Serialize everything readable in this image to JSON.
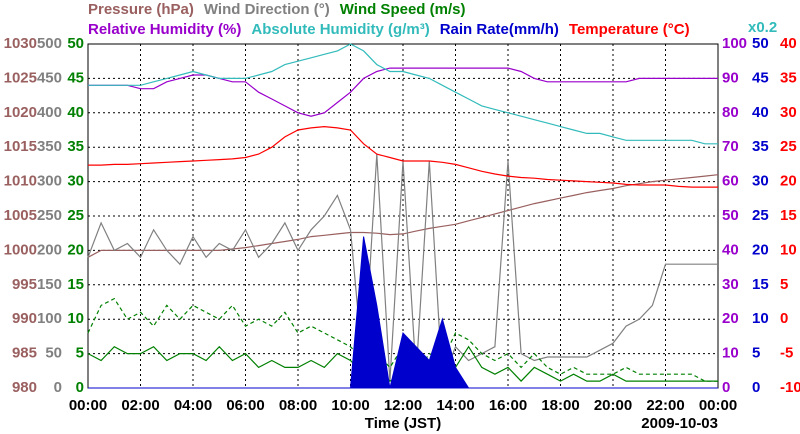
{
  "chart_data": {
    "type": "line",
    "x_label": "Time (JST)",
    "date": "2009-10-03",
    "xlim": [
      0,
      24
    ],
    "xticks": [
      {
        "value": 0,
        "label": "00:00"
      },
      {
        "value": 2,
        "label": "02:00"
      },
      {
        "value": 4,
        "label": "04:00"
      },
      {
        "value": 6,
        "label": "06:00"
      },
      {
        "value": 8,
        "label": "08:00"
      },
      {
        "value": 10,
        "label": "10:00"
      },
      {
        "value": 12,
        "label": "12:00"
      },
      {
        "value": 14,
        "label": "14:00"
      },
      {
        "value": 16,
        "label": "16:00"
      },
      {
        "value": 18,
        "label": "18:00"
      },
      {
        "value": 20,
        "label": "20:00"
      },
      {
        "value": 22,
        "label": "22:00"
      },
      {
        "value": 24,
        "label": "00:00"
      }
    ],
    "grid": true,
    "axes": [
      {
        "side": "left",
        "color": "#9a6060",
        "lim": [
          980,
          1030
        ],
        "ticks": [
          980,
          985,
          990,
          995,
          1000,
          1005,
          1010,
          1015,
          1020,
          1025,
          1030
        ]
      },
      {
        "side": "left",
        "color": "#808080",
        "lim": [
          0,
          500
        ],
        "ticks": [
          0,
          50,
          100,
          150,
          200,
          250,
          300,
          350,
          400,
          450,
          500
        ]
      },
      {
        "side": "left",
        "color": "#008000",
        "lim": [
          0,
          50
        ],
        "ticks": [
          0,
          5,
          10,
          15,
          20,
          25,
          30,
          35,
          40,
          45,
          50
        ]
      },
      {
        "side": "right",
        "color": "#9900cc",
        "lim": [
          0,
          100
        ],
        "ticks": [
          0,
          10,
          20,
          30,
          40,
          50,
          60,
          70,
          80,
          90,
          100
        ]
      },
      {
        "side": "right",
        "color": "#0000cc",
        "lim": [
          0,
          50
        ],
        "ticks": [
          0,
          5,
          10,
          15,
          20,
          25,
          30,
          35,
          40,
          45,
          50
        ],
        "scale_label": "x0.2",
        "scale_color": "#33bbbb"
      },
      {
        "side": "right",
        "color": "#ff0000",
        "lim": [
          -10,
          40
        ],
        "ticks": [
          -10,
          -5,
          0,
          5,
          10,
          15,
          20,
          25,
          30,
          35,
          40
        ]
      }
    ],
    "x": [
      0,
      0.5,
      1,
      1.5,
      2,
      2.5,
      3,
      3.5,
      4,
      4.5,
      5,
      5.5,
      6,
      6.5,
      7,
      7.5,
      8,
      8.5,
      9,
      9.5,
      10,
      10.5,
      11,
      11.5,
      12,
      12.5,
      13,
      13.5,
      14,
      14.5,
      15,
      15.5,
      16,
      16.5,
      17,
      17.5,
      18,
      18.5,
      19,
      19.5,
      20,
      20.5,
      21,
      21.5,
      22,
      22.5,
      23,
      23.5,
      24
    ],
    "series": [
      {
        "name": "Pressure (hPa)",
        "color": "#9a6060",
        "axis": 0,
        "values": [
          999,
          1000,
          1000,
          1000,
          1000,
          1000,
          1000,
          1000,
          1000,
          1000,
          1000,
          1000.2,
          1000.4,
          1000.7,
          1001,
          1001.3,
          1001.6,
          1002,
          1002.2,
          1002.4,
          1002.6,
          1002.6,
          1002.5,
          1002.3,
          1002.4,
          1002.8,
          1003.2,
          1003.5,
          1003.8,
          1004.3,
          1004.8,
          1005.3,
          1005.8,
          1006.3,
          1006.8,
          1007.2,
          1007.6,
          1008,
          1008.4,
          1008.7,
          1009,
          1009.4,
          1009.7,
          1010,
          1010.2,
          1010.4,
          1010.6,
          1010.8,
          1011
        ]
      },
      {
        "name": "Wind Direction (°)",
        "color": "#808080",
        "axis": 1,
        "values": [
          190,
          240,
          200,
          210,
          190,
          230,
          200,
          180,
          220,
          190,
          210,
          200,
          230,
          190,
          210,
          240,
          200,
          230,
          250,
          280,
          230,
          20,
          340,
          10,
          330,
          20,
          330,
          10,
          60,
          40,
          50,
          60,
          330,
          50,
          40,
          45,
          45,
          45,
          45,
          55,
          65,
          90,
          100,
          120,
          180,
          180,
          180,
          180,
          180
        ]
      },
      {
        "name": "Wind Speed (m/s)",
        "color": "#008000",
        "axis": 2,
        "values": [
          5,
          4,
          6,
          5,
          5,
          6,
          4,
          5,
          5,
          4,
          6,
          4,
          5,
          3,
          4,
          3,
          3,
          4,
          3,
          5,
          4,
          2,
          3,
          1,
          2,
          1,
          2,
          1,
          3,
          6,
          3,
          2,
          3,
          1,
          3,
          2,
          1,
          2,
          1,
          1,
          2,
          1,
          1,
          1,
          1,
          1,
          1,
          1,
          1
        ]
      },
      {
        "color": "#008000",
        "axis": 2,
        "dash": true,
        "values": [
          8,
          12,
          13,
          10,
          11,
          9,
          12,
          10,
          12,
          11,
          10,
          12,
          9,
          10,
          9,
          11,
          8,
          9,
          8,
          7,
          6,
          4,
          5,
          3,
          6,
          2,
          5,
          4,
          8,
          7,
          5,
          4,
          5,
          3,
          5,
          3,
          2,
          3,
          2,
          2,
          2,
          3,
          2,
          2,
          2,
          2,
          2,
          1,
          1
        ]
      },
      {
        "name": "Relative Humidity (%)",
        "color": "#9900cc",
        "axis": 3,
        "values": [
          88,
          88,
          88,
          88,
          87,
          87,
          89,
          90,
          91,
          91,
          90,
          89,
          89,
          86,
          84,
          82,
          80,
          79,
          80,
          83,
          86,
          90,
          92,
          93,
          93,
          93,
          93,
          93,
          93,
          93,
          93,
          93,
          93,
          92,
          90,
          89,
          89,
          89,
          89,
          89,
          89,
          89,
          90,
          90,
          90,
          90,
          90,
          90,
          90
        ]
      },
      {
        "name": "Absolute Humidity (g/m³)",
        "color": "#33bbbb",
        "axis": 4,
        "values": [
          44,
          44,
          44,
          44,
          44,
          44.5,
          45,
          45.5,
          46,
          45.5,
          45,
          45,
          45,
          45.5,
          46,
          47,
          47.5,
          48,
          48.5,
          49,
          50,
          49,
          47,
          46,
          46,
          45.5,
          45,
          44,
          43,
          42,
          41,
          40.5,
          40,
          39.5,
          39,
          38.5,
          38,
          37.5,
          37,
          37,
          36.5,
          36,
          36,
          36,
          36,
          36,
          36,
          35.5,
          35.5
        ]
      },
      {
        "name": "Rain Rate(mm/h)",
        "color": "#0000cc",
        "axis": 4,
        "area": true,
        "values": [
          0,
          0,
          0,
          0,
          0,
          0,
          0,
          0,
          0,
          0,
          0,
          0,
          0,
          0,
          0,
          0,
          0,
          0,
          0,
          0,
          0,
          22,
          12,
          0,
          8,
          6,
          4,
          10,
          3,
          0,
          0,
          0,
          0,
          0,
          0,
          0,
          0,
          0,
          0,
          0,
          0,
          0,
          0,
          0,
          0,
          0,
          0,
          0,
          0
        ]
      },
      {
        "name": "Temperature (°C)",
        "color": "#ff0000",
        "axis": 5,
        "values": [
          22.4,
          22.4,
          22.5,
          22.5,
          22.6,
          22.7,
          22.8,
          22.9,
          23,
          23.1,
          23.2,
          23.3,
          23.5,
          24,
          25,
          26.5,
          27.5,
          27.8,
          28,
          27.8,
          27.5,
          25.5,
          24,
          23.5,
          23,
          23,
          23,
          22.8,
          22.5,
          22,
          21.5,
          21.1,
          20.8,
          20.6,
          20.5,
          20.3,
          20.2,
          20.1,
          20,
          19.9,
          19.8,
          19.6,
          19.5,
          19.5,
          19.5,
          19.3,
          19.2,
          19.2,
          19.2
        ]
      }
    ]
  }
}
